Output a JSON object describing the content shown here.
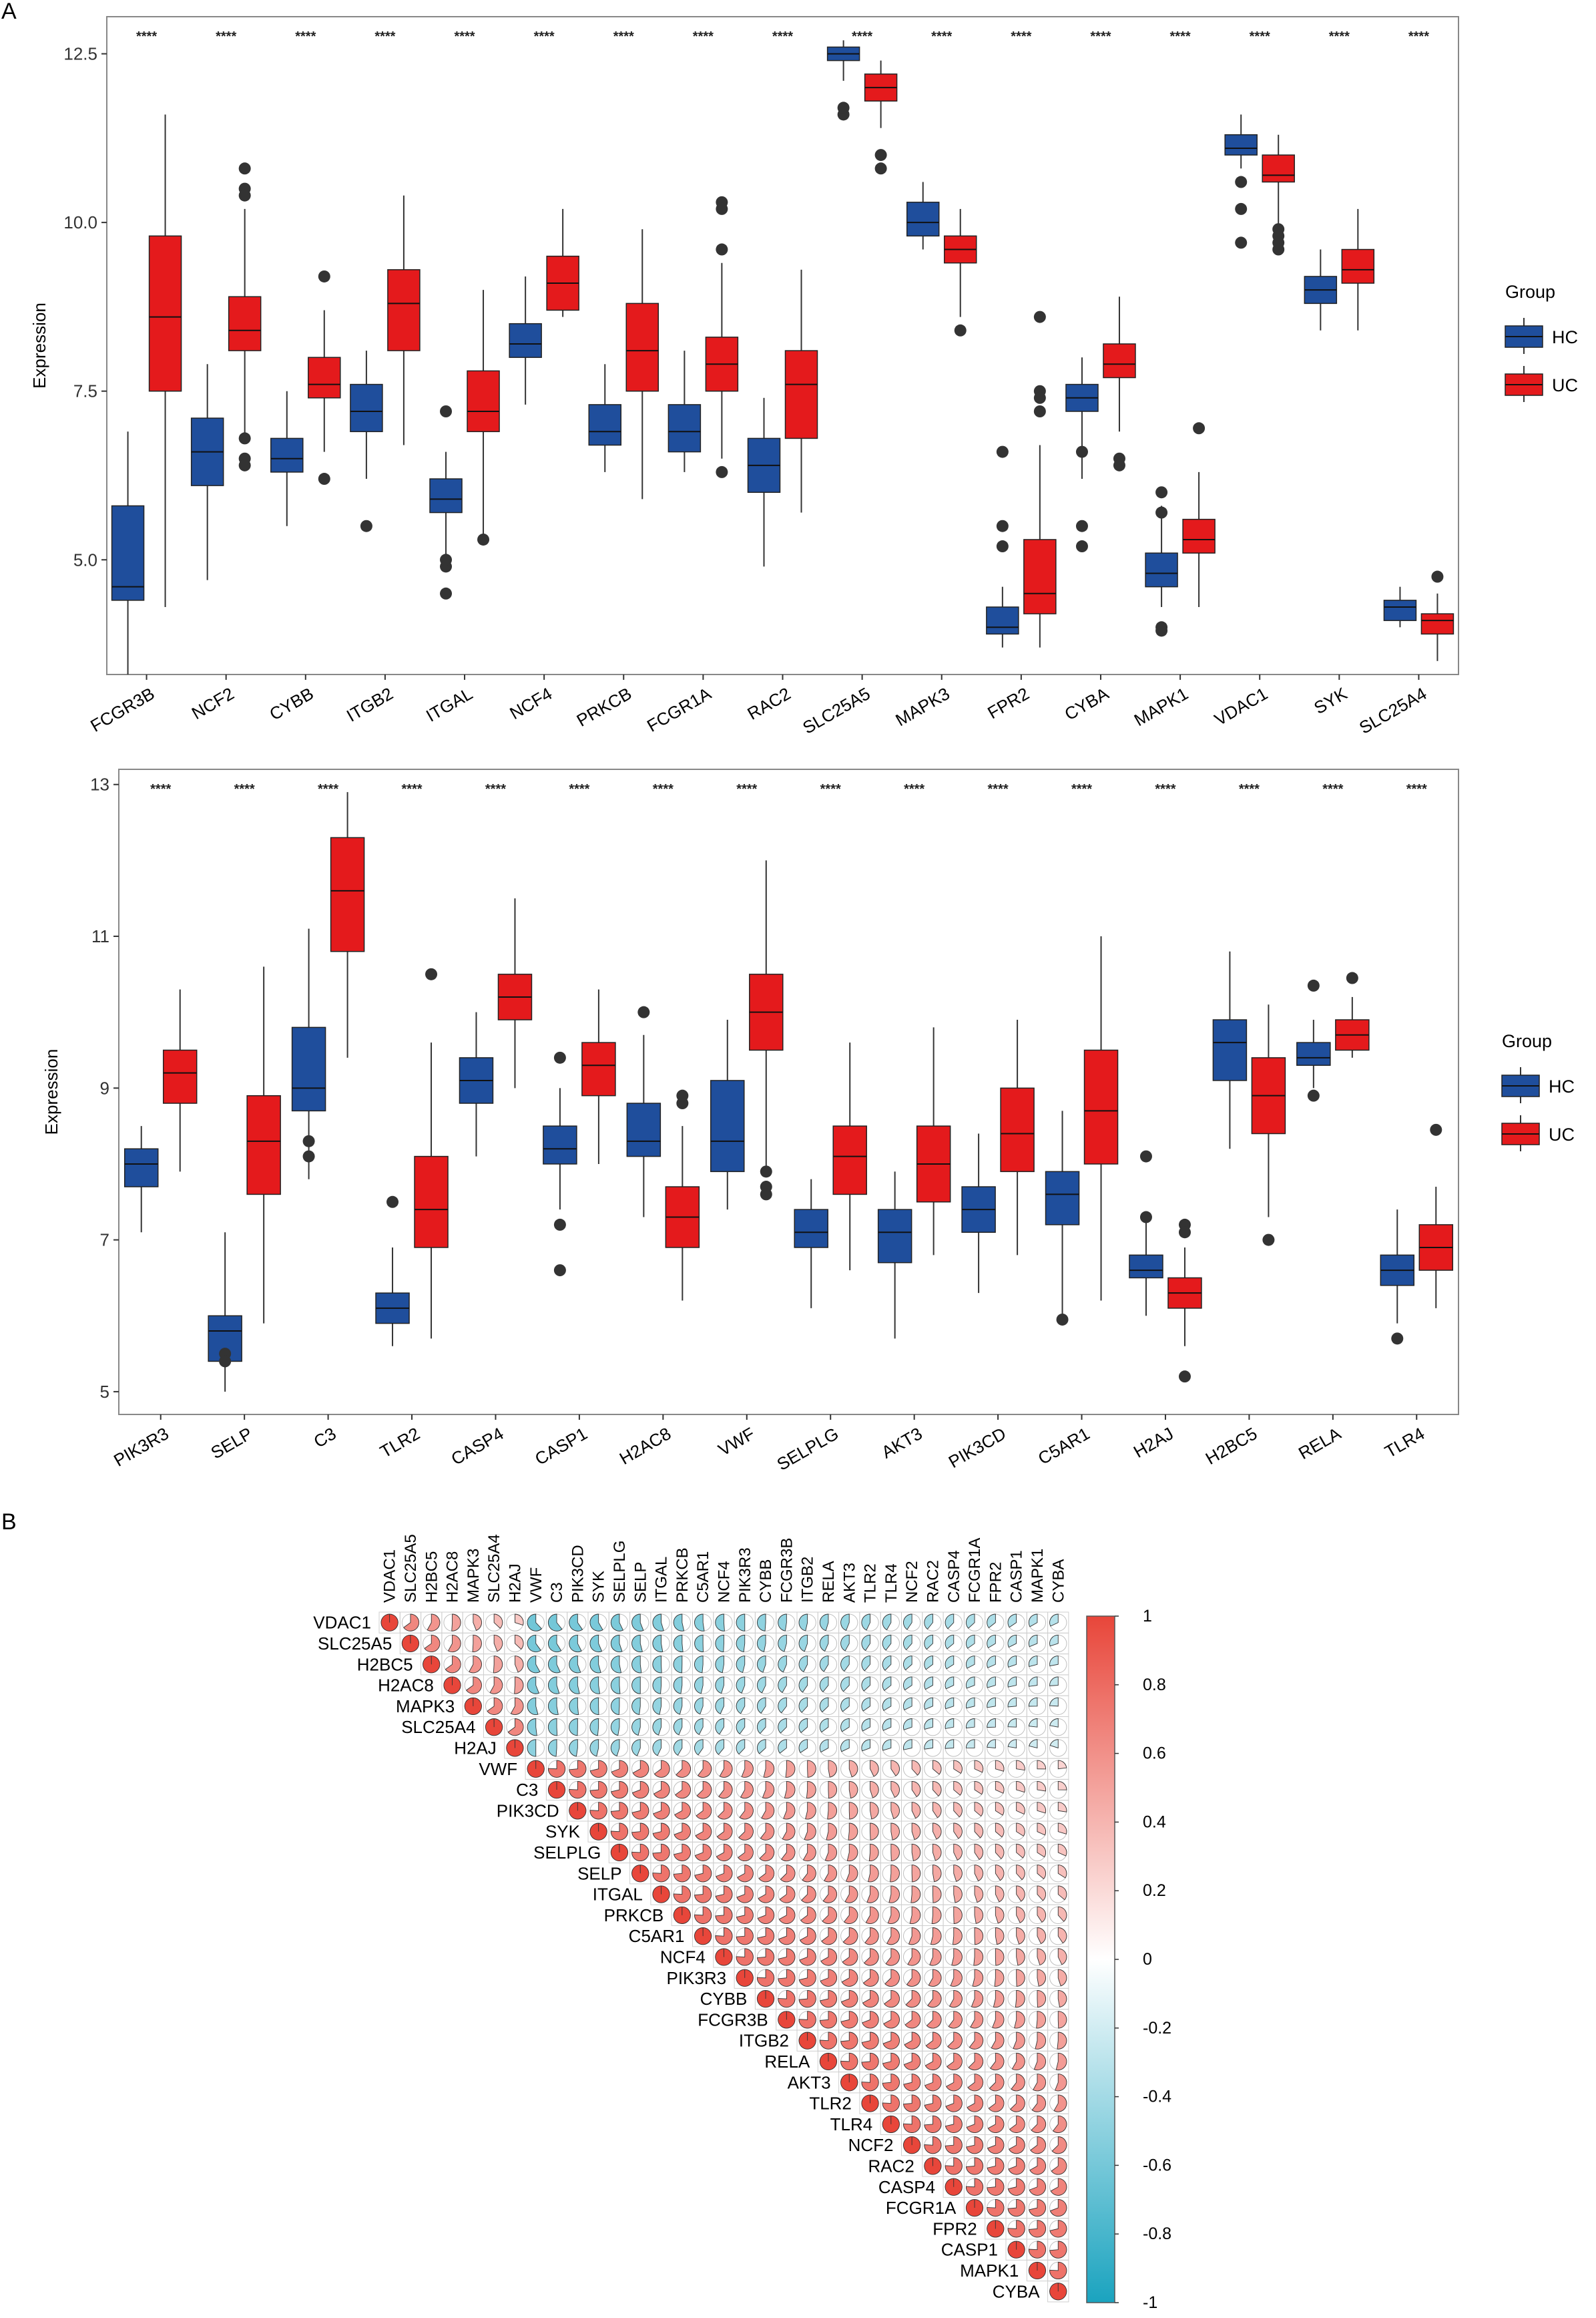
{
  "panels": {
    "a_label": "A",
    "b_label": "B"
  },
  "colors": {
    "hc": "#1f4e9c",
    "uc": "#e41a1c",
    "neg": "#1aa3bf",
    "pos": "#e8463a",
    "mid": "#ffffff",
    "frame": "#888888"
  },
  "chart_data": [
    {
      "type": "boxplot",
      "panel": "A (top)",
      "ylabel": "Expression",
      "ylim": [
        3.3,
        13.05
      ],
      "yticks": [
        5.0,
        7.5,
        10.0,
        12.5
      ],
      "ytick_labels": [
        "5.0",
        "7.5",
        "10.0",
        "12.5"
      ],
      "legend": {
        "title": "Group",
        "entries": [
          "HC",
          "UC"
        ],
        "position": "right"
      },
      "significance": "****",
      "categories": [
        "FCGR3B",
        "NCF2",
        "CYBB",
        "ITGB2",
        "ITGAL",
        "NCF4",
        "PRKCB",
        "FCGR1A",
        "RAC2",
        "SLC25A5",
        "MAPK3",
        "FPR2",
        "CYBA",
        "MAPK1",
        "VDAC1",
        "SYK",
        "SLC25A4"
      ],
      "series": [
        {
          "name": "HC",
          "boxes": [
            [
              3.3,
              4.4,
              4.6,
              5.8,
              6.9
            ],
            [
              4.7,
              6.1,
              6.6,
              7.1,
              7.9
            ],
            [
              5.5,
              6.3,
              6.5,
              6.8,
              7.5
            ],
            [
              6.2,
              6.9,
              7.2,
              7.6,
              8.1
            ],
            [
              5.0,
              5.7,
              5.9,
              6.2,
              6.6
            ],
            [
              7.3,
              8.0,
              8.2,
              8.5,
              9.2
            ],
            [
              6.3,
              6.7,
              6.9,
              7.3,
              7.9
            ],
            [
              6.3,
              6.6,
              6.9,
              7.3,
              8.1
            ],
            [
              4.9,
              6.0,
              6.4,
              6.8,
              7.4
            ],
            [
              12.1,
              12.4,
              12.5,
              12.6,
              12.7
            ],
            [
              9.6,
              9.8,
              10.0,
              10.3,
              10.6
            ],
            [
              3.7,
              3.9,
              4.0,
              4.3,
              4.6
            ],
            [
              6.2,
              7.2,
              7.4,
              7.6,
              8.0
            ],
            [
              4.3,
              4.6,
              4.8,
              5.1,
              5.8
            ],
            [
              10.8,
              11.0,
              11.1,
              11.3,
              11.6
            ],
            [
              8.4,
              8.8,
              9.0,
              9.2,
              9.6
            ],
            [
              4.0,
              4.1,
              4.3,
              4.4,
              4.6
            ]
          ],
          "outliers": [
            [],
            [],
            [],
            [
              5.5
            ],
            [
              7.2,
              4.5,
              4.9,
              5.0
            ],
            [],
            [],
            [],
            [],
            [
              11.6,
              11.7
            ],
            [],
            [
              5.2,
              5.5,
              6.6
            ],
            [
              5.2,
              5.5,
              6.6
            ],
            [
              3.95,
              4.0,
              5.7,
              6.0
            ],
            [
              9.7,
              10.2,
              10.6
            ],
            [],
            []
          ]
        },
        {
          "name": "UC",
          "boxes": [
            [
              4.3,
              7.5,
              8.6,
              9.8,
              11.6
            ],
            [
              6.8,
              8.1,
              8.4,
              8.9,
              10.2
            ],
            [
              6.6,
              7.4,
              7.6,
              8.0,
              8.7
            ],
            [
              6.7,
              8.1,
              8.8,
              9.3,
              10.4
            ],
            [
              5.3,
              6.9,
              7.2,
              7.8,
              9.0
            ],
            [
              8.6,
              8.7,
              9.1,
              9.5,
              10.2
            ],
            [
              5.9,
              7.5,
              8.1,
              8.8,
              9.9
            ],
            [
              6.5,
              7.5,
              7.9,
              8.3,
              9.4
            ],
            [
              5.7,
              6.8,
              7.6,
              8.1,
              9.3
            ],
            [
              11.4,
              11.8,
              12.0,
              12.2,
              12.4
            ],
            [
              8.6,
              9.4,
              9.6,
              9.8,
              10.2
            ],
            [
              3.7,
              4.2,
              4.5,
              5.3,
              6.7
            ],
            [
              6.9,
              7.7,
              7.9,
              8.2,
              8.9
            ],
            [
              4.3,
              5.1,
              5.3,
              5.6,
              6.3
            ],
            [
              9.9,
              10.6,
              10.7,
              11.0,
              11.3
            ],
            [
              8.4,
              9.1,
              9.3,
              9.6,
              10.2
            ],
            [
              3.5,
              3.9,
              4.1,
              4.2,
              4.5
            ]
          ],
          "outliers": [
            [],
            [
              10.8,
              10.5,
              10.4,
              6.8,
              6.5,
              6.4
            ],
            [
              9.2,
              6.2
            ],
            [],
            [
              5.3
            ],
            [],
            [],
            [
              10.3,
              10.2,
              9.6,
              6.3
            ],
            [],
            [
              11.0,
              10.8
            ],
            [
              8.4
            ],
            [
              8.6,
              7.5,
              7.4,
              7.2
            ],
            [
              6.5,
              6.4
            ],
            [
              6.95
            ],
            [
              9.9,
              9.8,
              9.7,
              9.6
            ],
            [],
            [
              4.75
            ]
          ]
        }
      ]
    },
    {
      "type": "boxplot",
      "panel": "A (bottom)",
      "ylabel": "Expression",
      "ylim": [
        4.7,
        13.2
      ],
      "yticks": [
        5,
        7,
        9,
        11,
        13
      ],
      "ytick_labels": [
        "5",
        "7",
        "9",
        "11",
        "13"
      ],
      "legend": {
        "title": "Group",
        "entries": [
          "HC",
          "UC"
        ],
        "position": "right"
      },
      "significance": "****",
      "categories": [
        "PIK3R3",
        "SELP",
        "C3",
        "TLR2",
        "CASP4",
        "CASP1",
        "H2AC8",
        "VWF",
        "SELPLG",
        "AKT3",
        "PIK3CD",
        "C5AR1",
        "H2AJ",
        "H2BC5",
        "RELA",
        "TLR4"
      ],
      "series": [
        {
          "name": "HC",
          "boxes": [
            [
              7.1,
              7.7,
              8.0,
              8.2,
              8.5
            ],
            [
              5.0,
              5.4,
              5.8,
              6.0,
              7.1
            ],
            [
              7.8,
              8.7,
              9.0,
              9.8,
              11.1
            ],
            [
              5.6,
              5.9,
              6.1,
              6.3,
              6.9
            ],
            [
              8.1,
              8.8,
              9.1,
              9.4,
              10.0
            ],
            [
              7.4,
              8.0,
              8.2,
              8.5,
              9.0
            ],
            [
              7.3,
              8.1,
              8.3,
              8.8,
              9.7
            ],
            [
              7.4,
              7.9,
              8.3,
              9.1,
              9.9
            ],
            [
              6.1,
              6.9,
              7.1,
              7.4,
              7.8
            ],
            [
              5.7,
              6.7,
              7.1,
              7.4,
              7.9
            ],
            [
              6.3,
              7.1,
              7.4,
              7.7,
              8.4
            ],
            [
              6.0,
              7.2,
              7.6,
              7.9,
              8.7
            ],
            [
              6.0,
              6.5,
              6.6,
              6.8,
              7.3
            ],
            [
              8.2,
              9.1,
              9.6,
              9.9,
              10.8
            ],
            [
              9.0,
              9.3,
              9.4,
              9.6,
              9.9
            ],
            [
              5.9,
              6.4,
              6.6,
              6.8,
              7.4
            ]
          ],
          "outliers": [
            [],
            [
              5.5,
              5.4
            ],
            [
              8.3,
              8.1
            ],
            [
              7.5
            ],
            [],
            [
              9.4,
              7.2,
              6.6
            ],
            [
              10.0
            ],
            [],
            [],
            [],
            [],
            [
              5.95
            ],
            [
              8.1,
              7.3
            ],
            [],
            [
              10.35,
              8.9
            ],
            [
              5.7
            ]
          ]
        },
        {
          "name": "UC",
          "boxes": [
            [
              7.9,
              8.8,
              9.2,
              9.5,
              10.3
            ],
            [
              5.9,
              7.6,
              8.3,
              8.9,
              10.6
            ],
            [
              9.4,
              10.8,
              11.6,
              12.3,
              12.9
            ],
            [
              5.7,
              6.9,
              7.4,
              8.1,
              9.6
            ],
            [
              9.0,
              9.9,
              10.2,
              10.5,
              11.5
            ],
            [
              8.0,
              8.9,
              9.3,
              9.6,
              10.3
            ],
            [
              6.2,
              6.9,
              7.3,
              7.7,
              8.5
            ],
            [
              7.9,
              9.5,
              10.0,
              10.5,
              12.0
            ],
            [
              6.6,
              7.6,
              8.1,
              8.5,
              9.6
            ],
            [
              6.8,
              7.5,
              8.0,
              8.5,
              9.8
            ],
            [
              6.8,
              7.9,
              8.4,
              9.0,
              9.9
            ],
            [
              6.2,
              8.0,
              8.7,
              9.5,
              11.0
            ],
            [
              5.6,
              6.1,
              6.3,
              6.5,
              6.9
            ],
            [
              7.3,
              8.4,
              8.9,
              9.4,
              10.1
            ],
            [
              9.4,
              9.5,
              9.7,
              9.9,
              10.2
            ],
            [
              6.1,
              6.6,
              6.9,
              7.2,
              7.7
            ]
          ],
          "outliers": [
            [],
            [],
            [],
            [
              10.5
            ],
            [],
            [],
            [
              8.8,
              8.9
            ],
            [
              7.9,
              7.7,
              7.6
            ],
            [],
            [],
            [],
            [],
            [
              7.2,
              7.1,
              5.2
            ],
            [
              7.0
            ],
            [
              10.45
            ],
            [
              8.45
            ]
          ]
        }
      ]
    },
    {
      "type": "heatmap",
      "panel": "B",
      "subtype": "correlation matrix (upper triangle, pie glyphs)",
      "labels": [
        "VDAC1",
        "SLC25A5",
        "H2BC5",
        "H2AC8",
        "MAPK3",
        "SLC25A4",
        "H2AJ",
        "VWF",
        "C3",
        "PIK3CD",
        "SYK",
        "SELPLG",
        "SELP",
        "ITGAL",
        "PRKCB",
        "C5AR1",
        "NCF4",
        "PIK3R3",
        "CYBB",
        "FCGR3B",
        "ITGB2",
        "RELA",
        "AKT3",
        "TLR2",
        "TLR4",
        "NCF2",
        "RAC2",
        "CASP4",
        "FCGR1A",
        "FPR2",
        "CASP1",
        "MAPK1",
        "CYBA"
      ],
      "negative_group_size": 7,
      "colorbar": {
        "min": -1,
        "max": 1,
        "ticks": [
          1,
          0.8,
          0.6,
          0.4,
          0.2,
          0,
          -0.2,
          -0.4,
          -0.6,
          -0.8,
          -1
        ],
        "tick_labels": [
          "1",
          "0.8",
          "0.6",
          "0.4",
          "0.2",
          "0",
          "-0.2",
          "-0.4",
          "-0.6",
          "-0.8",
          "-1"
        ]
      },
      "values_note": "approximate: ~0.7 within groups (decaying with distance), ~-0.55 between the 7 mitochondrial/histone genes and the 26 immune genes"
    }
  ]
}
